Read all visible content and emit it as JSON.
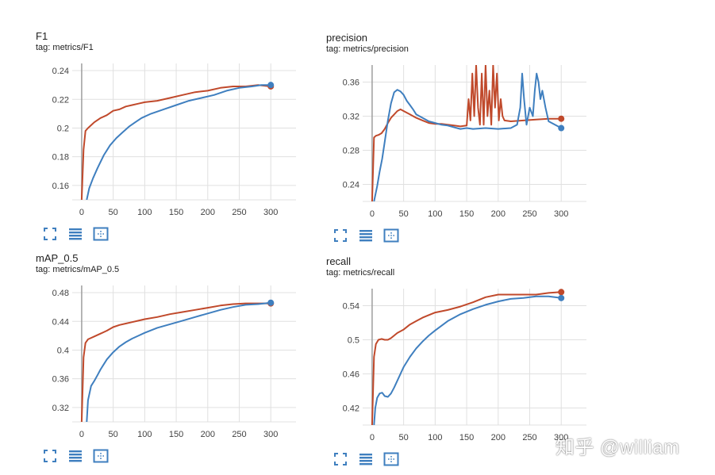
{
  "colors": {
    "blue": "#3f7fbf",
    "orange": "#c0492b",
    "grid": "#e0e0e0",
    "axis": "#9e9e9e",
    "icon": "#3f7fbf"
  },
  "watermark": "知乎 @william",
  "controls": [
    {
      "name": "fit-domain-icon",
      "label": "fit domain"
    },
    {
      "name": "toggle-log-scale-icon",
      "label": "log scale"
    },
    {
      "name": "expand-chart-icon",
      "label": "expand"
    }
  ],
  "chart_data": [
    {
      "type": "line",
      "title": "F1",
      "tag": "tag: metrics/F1",
      "xlim": [
        -15,
        340
      ],
      "ylim": [
        0.15,
        0.245
      ],
      "xticks": [
        0,
        50,
        100,
        150,
        200,
        250,
        300
      ],
      "yticks": [
        0.16,
        0.18,
        0.2,
        0.22,
        0.24
      ],
      "ytick_labels": [
        "0.16",
        "0.18",
        "0.2",
        "0.22",
        "0.24"
      ],
      "series": [
        {
          "name": "orange",
          "color": "orange",
          "x": [
            0,
            3,
            6,
            10,
            15,
            20,
            30,
            40,
            50,
            60,
            70,
            80,
            90,
            100,
            120,
            140,
            160,
            180,
            200,
            220,
            240,
            260,
            280,
            300
          ],
          "y": [
            0.15,
            0.185,
            0.198,
            0.2,
            0.202,
            0.204,
            0.207,
            0.209,
            0.212,
            0.213,
            0.215,
            0.216,
            0.217,
            0.218,
            0.219,
            0.221,
            0.223,
            0.225,
            0.226,
            0.228,
            0.229,
            0.229,
            0.23,
            0.229
          ]
        },
        {
          "name": "blue",
          "color": "blue",
          "x": [
            8,
            12,
            18,
            25,
            35,
            45,
            55,
            65,
            75,
            85,
            95,
            110,
            130,
            150,
            170,
            190,
            210,
            230,
            250,
            270,
            285,
            300
          ],
          "y": [
            0.15,
            0.158,
            0.165,
            0.172,
            0.181,
            0.188,
            0.193,
            0.197,
            0.201,
            0.204,
            0.207,
            0.21,
            0.213,
            0.216,
            0.219,
            0.221,
            0.223,
            0.226,
            0.228,
            0.229,
            0.23,
            0.23
          ]
        }
      ]
    },
    {
      "type": "line",
      "title": "precision",
      "tag": "tag: metrics/precision",
      "xlim": [
        -15,
        340
      ],
      "ylim": [
        0.22,
        0.38
      ],
      "xticks": [
        0,
        50,
        100,
        150,
        200,
        250,
        300
      ],
      "yticks": [
        0.24,
        0.28,
        0.32,
        0.36
      ],
      "ytick_labels": [
        "0.24",
        "0.28",
        "0.32",
        "0.36"
      ],
      "series": [
        {
          "name": "orange",
          "color": "orange",
          "x": [
            0,
            3,
            6,
            10,
            15,
            20,
            25,
            30,
            35,
            40,
            45,
            50,
            60,
            70,
            80,
            90,
            100,
            110,
            120,
            130,
            140,
            150,
            153,
            156,
            159,
            162,
            165,
            168,
            171,
            174,
            177,
            180,
            183,
            186,
            189,
            192,
            195,
            198,
            201,
            204,
            207,
            210,
            220,
            240,
            260,
            280,
            300
          ],
          "y": [
            0.22,
            0.295,
            0.297,
            0.298,
            0.3,
            0.305,
            0.312,
            0.318,
            0.322,
            0.326,
            0.328,
            0.326,
            0.322,
            0.318,
            0.315,
            0.312,
            0.311,
            0.311,
            0.31,
            0.309,
            0.308,
            0.309,
            0.34,
            0.315,
            0.37,
            0.32,
            0.38,
            0.33,
            0.31,
            0.37,
            0.31,
            0.38,
            0.32,
            0.35,
            0.31,
            0.38,
            0.33,
            0.37,
            0.315,
            0.34,
            0.32,
            0.315,
            0.314,
            0.315,
            0.316,
            0.317,
            0.317
          ]
        },
        {
          "name": "blue",
          "color": "blue",
          "x": [
            3,
            8,
            12,
            16,
            20,
            25,
            30,
            35,
            40,
            45,
            50,
            55,
            60,
            65,
            70,
            80,
            90,
            100,
            110,
            120,
            130,
            140,
            150,
            160,
            180,
            200,
            220,
            230,
            235,
            238,
            241,
            245,
            250,
            255,
            258,
            261,
            264,
            267,
            270,
            275,
            280,
            290,
            300
          ],
          "y": [
            0.22,
            0.238,
            0.255,
            0.27,
            0.29,
            0.315,
            0.335,
            0.348,
            0.351,
            0.349,
            0.345,
            0.338,
            0.333,
            0.328,
            0.322,
            0.318,
            0.314,
            0.312,
            0.31,
            0.309,
            0.307,
            0.305,
            0.306,
            0.305,
            0.306,
            0.305,
            0.306,
            0.31,
            0.33,
            0.37,
            0.34,
            0.31,
            0.33,
            0.32,
            0.35,
            0.37,
            0.36,
            0.34,
            0.35,
            0.33,
            0.314,
            0.31,
            0.306
          ]
        }
      ]
    },
    {
      "type": "line",
      "title": "mAP_0.5",
      "tag": "tag: metrics/mAP_0.5",
      "xlim": [
        -15,
        340
      ],
      "ylim": [
        0.3,
        0.49
      ],
      "xticks": [
        0,
        50,
        100,
        150,
        200,
        250,
        300
      ],
      "yticks": [
        0.32,
        0.36,
        0.4,
        0.44,
        0.48
      ],
      "ytick_labels": [
        "0.32",
        "0.36",
        "0.4",
        "0.44",
        "0.48"
      ],
      "series": [
        {
          "name": "orange",
          "color": "orange",
          "x": [
            0,
            3,
            6,
            10,
            15,
            20,
            30,
            40,
            50,
            60,
            70,
            80,
            90,
            100,
            120,
            140,
            160,
            180,
            200,
            220,
            240,
            260,
            280,
            300
          ],
          "y": [
            0.3,
            0.39,
            0.41,
            0.415,
            0.417,
            0.419,
            0.423,
            0.427,
            0.432,
            0.435,
            0.437,
            0.439,
            0.441,
            0.443,
            0.446,
            0.45,
            0.453,
            0.456,
            0.459,
            0.462,
            0.464,
            0.465,
            0.465,
            0.465
          ]
        },
        {
          "name": "blue",
          "color": "blue",
          "x": [
            8,
            10,
            15,
            20,
            25,
            30,
            40,
            50,
            60,
            70,
            80,
            90,
            100,
            120,
            140,
            160,
            180,
            200,
            220,
            240,
            260,
            280,
            300
          ],
          "y": [
            0.3,
            0.33,
            0.35,
            0.357,
            0.365,
            0.373,
            0.387,
            0.397,
            0.405,
            0.411,
            0.416,
            0.42,
            0.424,
            0.431,
            0.436,
            0.441,
            0.446,
            0.451,
            0.456,
            0.46,
            0.463,
            0.464,
            0.466
          ]
        }
      ]
    },
    {
      "type": "line",
      "title": "recall",
      "tag": "tag: metrics/recall",
      "xlim": [
        -15,
        340
      ],
      "ylim": [
        0.4,
        0.56
      ],
      "xticks": [
        0,
        50,
        100,
        150,
        200,
        250,
        300
      ],
      "yticks": [
        0.42,
        0.46,
        0.5,
        0.54
      ],
      "ytick_labels": [
        "0.42",
        "0.46",
        "0.5",
        "0.54"
      ],
      "series": [
        {
          "name": "orange",
          "color": "orange",
          "x": [
            0,
            3,
            6,
            10,
            15,
            20,
            25,
            30,
            35,
            40,
            50,
            60,
            70,
            80,
            90,
            100,
            120,
            140,
            160,
            180,
            200,
            220,
            240,
            260,
            280,
            300
          ],
          "y": [
            0.4,
            0.48,
            0.495,
            0.5,
            0.501,
            0.5,
            0.5,
            0.502,
            0.505,
            0.508,
            0.512,
            0.518,
            0.522,
            0.526,
            0.529,
            0.532,
            0.535,
            0.539,
            0.544,
            0.55,
            0.553,
            0.553,
            0.553,
            0.553,
            0.555,
            0.556
          ]
        },
        {
          "name": "blue",
          "color": "blue",
          "x": [
            3,
            5,
            8,
            12,
            16,
            20,
            25,
            30,
            35,
            40,
            50,
            60,
            70,
            80,
            90,
            100,
            120,
            140,
            160,
            180,
            200,
            220,
            240,
            260,
            280,
            300
          ],
          "y": [
            0.4,
            0.42,
            0.432,
            0.437,
            0.438,
            0.434,
            0.433,
            0.437,
            0.444,
            0.452,
            0.468,
            0.48,
            0.49,
            0.498,
            0.505,
            0.511,
            0.522,
            0.53,
            0.536,
            0.541,
            0.545,
            0.548,
            0.549,
            0.551,
            0.551,
            0.549
          ]
        }
      ]
    }
  ]
}
